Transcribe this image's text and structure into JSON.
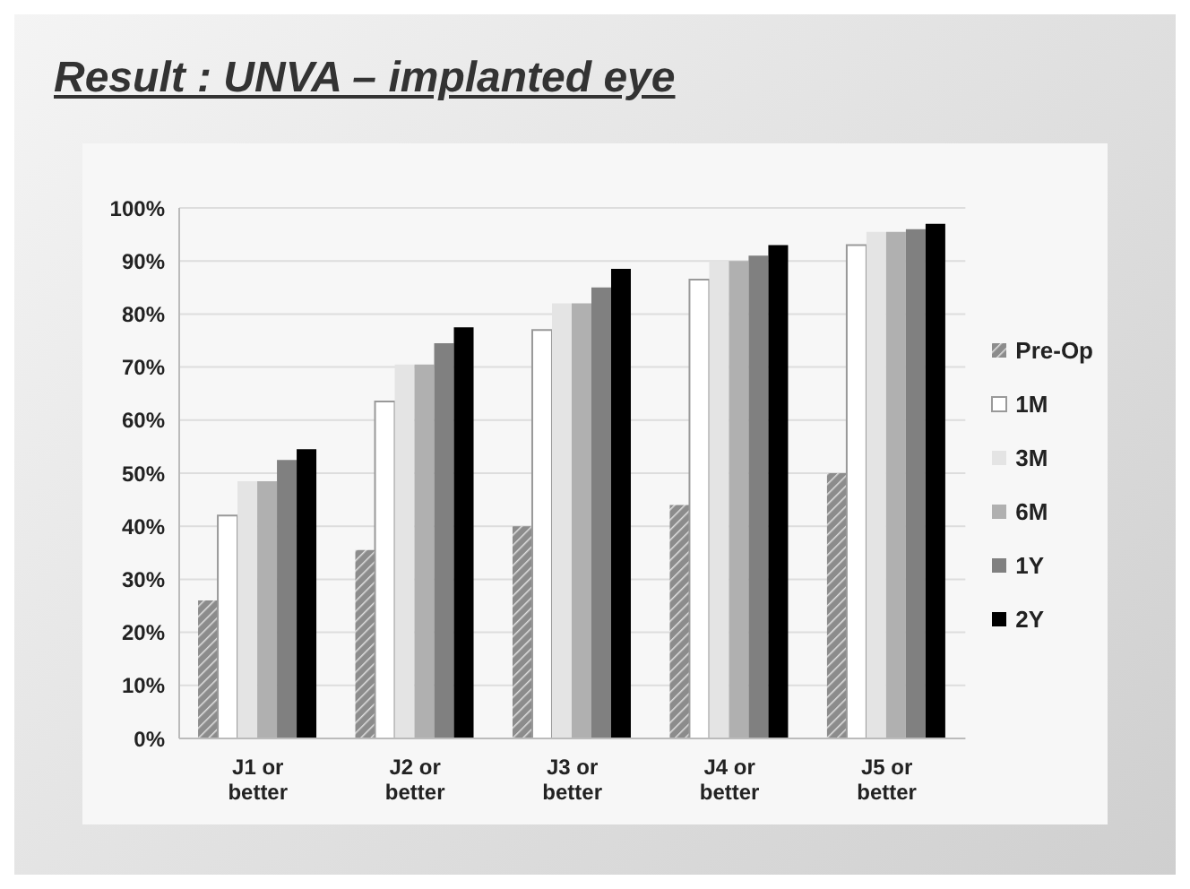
{
  "chart_data": {
    "type": "bar",
    "title": "Result : UNVA – implanted eye",
    "categories": [
      "J1 or better",
      "J2 or better",
      "J3 or better",
      "J4 or better",
      "J5 or better"
    ],
    "series": [
      {
        "name": "Pre-Op",
        "color": "#8c8c8c",
        "values": [
          26,
          35.5,
          40,
          44,
          50
        ]
      },
      {
        "name": "1M",
        "color": "#ffffff",
        "values": [
          42,
          63.5,
          77,
          86.5,
          93
        ]
      },
      {
        "name": "3M",
        "color": "#e4e4e4",
        "values": [
          48.5,
          70.5,
          82,
          90,
          95.5
        ]
      },
      {
        "name": "6M",
        "color": "#b0b0b0",
        "values": [
          48.5,
          70.5,
          82,
          90,
          95.5
        ]
      },
      {
        "name": "1Y",
        "color": "#808080",
        "values": [
          52.5,
          74.5,
          85,
          91,
          96
        ]
      },
      {
        "name": "2Y",
        "color": "#000000",
        "values": [
          54.5,
          77.5,
          88.5,
          93,
          97
        ]
      }
    ],
    "ylim": [
      0,
      100
    ],
    "yticks": [
      {
        "value": 0,
        "label": "0%"
      },
      {
        "value": 10,
        "label": "10%"
      },
      {
        "value": 20,
        "label": "20%"
      },
      {
        "value": 30,
        "label": "30%"
      },
      {
        "value": 40,
        "label": "40%"
      },
      {
        "value": 50,
        "label": "50%"
      },
      {
        "value": 60,
        "label": "60%"
      },
      {
        "value": 70,
        "label": "70%"
      },
      {
        "value": 80,
        "label": "80%"
      },
      {
        "value": 90,
        "label": "90%"
      },
      {
        "value": 100,
        "label": "100%"
      }
    ],
    "grid": "y",
    "legend": "right"
  }
}
